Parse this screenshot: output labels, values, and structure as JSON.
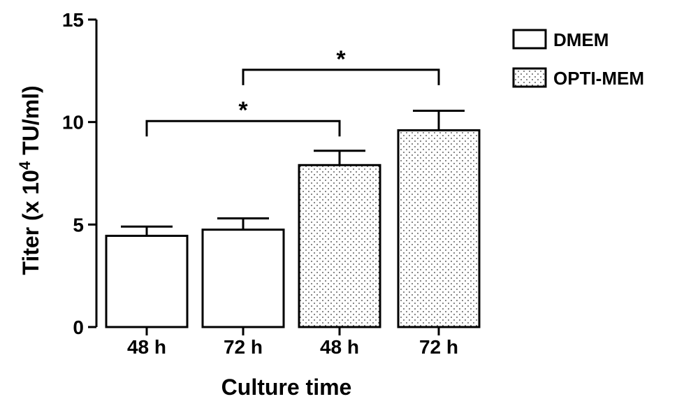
{
  "chart_data": {
    "type": "bar",
    "xlabel": "Culture time",
    "ylabel": {
      "prefix": "Titer (x 10",
      "sup": "4",
      "suffix": " TU/ml)"
    },
    "ylim": [
      0,
      15
    ],
    "yticks": [
      "0",
      "5",
      "10",
      "15"
    ],
    "legend_position": "top-right",
    "bars": [
      {
        "label": "48 h",
        "series": "DMEM",
        "value": 4.45,
        "error": 0.45
      },
      {
        "label": "72 h",
        "series": "DMEM",
        "value": 4.75,
        "error": 0.55
      },
      {
        "label": "48 h",
        "series": "OPTI-MEM",
        "value": 7.9,
        "error": 0.7
      },
      {
        "label": "72 h",
        "series": "OPTI-MEM",
        "value": 9.6,
        "error": 0.95
      }
    ],
    "series": [
      {
        "name": "DMEM",
        "fill": "plain"
      },
      {
        "name": "OPTI-MEM",
        "fill": "dotted"
      }
    ],
    "significance": [
      {
        "from": 0,
        "to": 2,
        "y": 10.05,
        "label": "*"
      },
      {
        "from": 1,
        "to": 3,
        "y": 12.55,
        "label": "*"
      }
    ]
  }
}
